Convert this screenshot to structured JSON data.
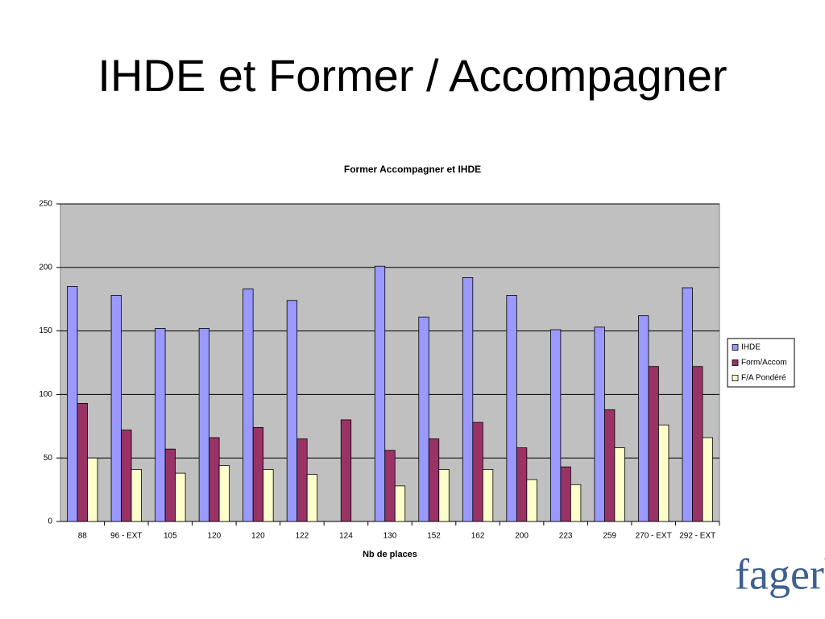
{
  "title": "IHDE et Former / Accompagner",
  "logo": "fagerh",
  "chart_data": {
    "type": "bar",
    "title": "Former Accompagner et IHDE",
    "x_label": "Nb de places",
    "categories": [
      "88",
      "96 - EXT",
      "105",
      "120",
      "120",
      "122",
      "124",
      "130",
      "152",
      "162",
      "200",
      "223",
      "259",
      "270 - EXT",
      "292 - EXT"
    ],
    "series": [
      {
        "name": "IHDE",
        "color": "#9999ff",
        "values": [
          185,
          178,
          152,
          152,
          183,
          174,
          null,
          201,
          161,
          192,
          178,
          151,
          153,
          162,
          184
        ]
      },
      {
        "name": "Form/Accom",
        "color": "#993366",
        "values": [
          93,
          72,
          57,
          66,
          74,
          65,
          80,
          56,
          65,
          78,
          58,
          43,
          88,
          122,
          122
        ]
      },
      {
        "name": "F/A Pondéré",
        "color": "#ffffcc",
        "values": [
          50,
          41,
          38,
          44,
          41,
          37,
          null,
          28,
          41,
          41,
          33,
          29,
          58,
          76,
          66
        ]
      }
    ],
    "ylim": [
      0,
      250
    ],
    "yticks": [
      0,
      50,
      100,
      150,
      200,
      250
    ],
    "grid": true,
    "legend": "right"
  }
}
